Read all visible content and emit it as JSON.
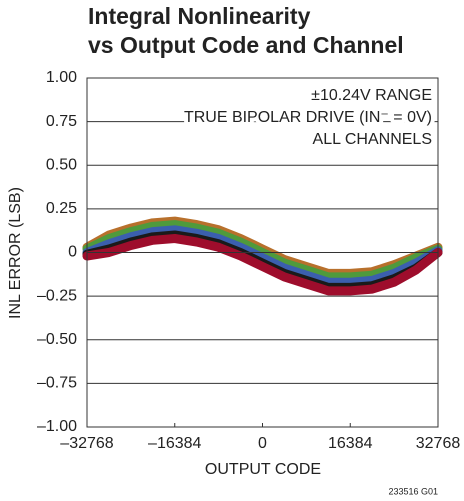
{
  "chart_data": {
    "type": "line",
    "title": [
      "Integral Nonlinearity",
      "vs Output Code and Channel"
    ],
    "annotations": [
      "±10.24V RANGE",
      "TRUE BIPOLAR DRIVE (IN⁻ = 0V)",
      "ALL CHANNELS"
    ],
    "xlabel": "OUTPUT CODE",
    "ylabel": "INL ERROR (LSB)",
    "footnote": "233516 G01",
    "x": [
      -32768,
      -28672,
      -24576,
      -20480,
      -16384,
      -12288,
      -8192,
      -4096,
      0,
      4096,
      8192,
      12288,
      16384,
      20480,
      24576,
      28672,
      32768
    ],
    "series": [
      {
        "color": "#b8702c",
        "values": [
          0.03,
          0.1,
          0.14,
          0.17,
          0.18,
          0.16,
          0.13,
          0.08,
          0.02,
          -0.04,
          -0.08,
          -0.12,
          -0.12,
          -0.11,
          -0.07,
          -0.02,
          0.03
        ]
      },
      {
        "color": "#4f9a3c",
        "values": [
          0.02,
          0.08,
          0.12,
          0.15,
          0.16,
          0.14,
          0.11,
          0.06,
          0,
          -0.06,
          -0.1,
          -0.14,
          -0.14,
          -0.13,
          -0.09,
          -0.03,
          0.02
        ]
      },
      {
        "color": "#3b5fae",
        "values": [
          0,
          0.05,
          0.09,
          0.12,
          0.13,
          0.11,
          0.08,
          0.03,
          -0.03,
          -0.09,
          -0.13,
          -0.17,
          -0.17,
          -0.16,
          -0.12,
          -0.06,
          0.01
        ]
      },
      {
        "color": "#1a1a1a",
        "values": [
          -0.01,
          0.02,
          0.06,
          0.09,
          0.1,
          0.08,
          0.05,
          0,
          -0.06,
          -0.12,
          -0.16,
          -0.2,
          -0.2,
          -0.19,
          -0.15,
          -0.09,
          0
        ]
      },
      {
        "color": "#9e0d2c",
        "values": [
          -0.02,
          0,
          0.04,
          0.07,
          0.08,
          0.06,
          0.03,
          -0.02,
          -0.08,
          -0.14,
          -0.18,
          -0.22,
          -0.22,
          -0.21,
          -0.17,
          -0.1,
          0
        ]
      }
    ],
    "xlim": [
      -32768,
      32768
    ],
    "xticks": [
      {
        "value": -32768,
        "label": "–32768"
      },
      {
        "value": -16384,
        "label": "–16384"
      },
      0,
      16384,
      32768
    ],
    "ylim": [
      -1,
      1
    ],
    "yticks": [
      {
        "value": -1,
        "label": "–1.00"
      },
      {
        "value": -0.75,
        "label": "–0.75"
      },
      {
        "value": -0.5,
        "label": "–0.50"
      },
      {
        "value": -0.25,
        "label": "–0.25"
      },
      0,
      0.25,
      {
        "value": 0.5,
        "label": "0.50"
      },
      0.75,
      {
        "value": 1,
        "label": "1.00"
      }
    ],
    "grid": true
  }
}
